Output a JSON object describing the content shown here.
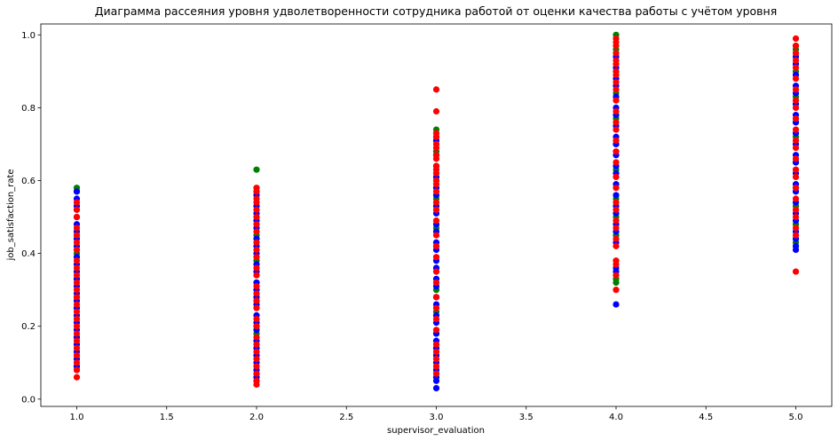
{
  "chart_data": {
    "type": "scatter",
    "title": "Диаграмма рассеяния уровня удволетворенности сотрудника работой от оценки качества работы с учётом уровня",
    "xlabel": "supervisor_evaluation",
    "ylabel": "job_satisfaction_rate",
    "xlim": [
      0.8,
      5.2
    ],
    "ylim": [
      -0.02,
      1.03
    ],
    "xticks": [
      "1.0",
      "1.5",
      "2.0",
      "2.5",
      "3.0",
      "3.5",
      "4.0",
      "4.5",
      "5.0"
    ],
    "yticks": [
      "0.0",
      "0.2",
      "0.4",
      "0.6",
      "0.8",
      "1.0"
    ],
    "grid": false,
    "series": [
      {
        "color": "#008000",
        "points": [
          [
            1,
            0.58
          ],
          [
            1,
            0.57
          ],
          [
            1,
            0.52
          ],
          [
            1,
            0.45
          ],
          [
            1,
            0.4
          ],
          [
            1,
            0.33
          ],
          [
            1,
            0.28
          ],
          [
            1,
            0.22
          ],
          [
            1,
            0.17
          ],
          [
            1,
            0.12
          ],
          [
            1,
            0.09
          ],
          [
            2,
            0.63
          ],
          [
            2,
            0.57
          ],
          [
            2,
            0.5
          ],
          [
            2,
            0.45
          ],
          [
            2,
            0.38
          ],
          [
            2,
            0.32
          ],
          [
            2,
            0.27
          ],
          [
            2,
            0.2
          ],
          [
            2,
            0.18
          ],
          [
            2,
            0.12
          ],
          [
            2,
            0.07
          ],
          [
            3,
            0.74
          ],
          [
            3,
            0.72
          ],
          [
            3,
            0.68
          ],
          [
            3,
            0.6
          ],
          [
            3,
            0.55
          ],
          [
            3,
            0.47
          ],
          [
            3,
            0.42
          ],
          [
            3,
            0.36
          ],
          [
            3,
            0.3
          ],
          [
            3,
            0.24
          ],
          [
            3,
            0.18
          ],
          [
            3,
            0.12
          ],
          [
            3,
            0.07
          ],
          [
            4,
            1.0
          ],
          [
            4,
            0.96
          ],
          [
            4,
            0.9
          ],
          [
            4,
            0.84
          ],
          [
            4,
            0.77
          ],
          [
            4,
            0.7
          ],
          [
            4,
            0.63
          ],
          [
            4,
            0.55
          ],
          [
            4,
            0.5
          ],
          [
            4,
            0.45
          ],
          [
            4,
            0.38
          ],
          [
            4,
            0.33
          ],
          [
            4,
            0.32
          ],
          [
            5,
            0.97
          ],
          [
            5,
            0.96
          ],
          [
            5,
            0.9
          ],
          [
            5,
            0.83
          ],
          [
            5,
            0.76
          ],
          [
            5,
            0.72
          ],
          [
            5,
            0.65
          ],
          [
            5,
            0.58
          ],
          [
            5,
            0.53
          ],
          [
            5,
            0.48
          ],
          [
            5,
            0.43
          ]
        ]
      },
      {
        "color": "#0000ff",
        "points": [
          [
            1,
            0.57
          ],
          [
            1,
            0.55
          ],
          [
            1,
            0.53
          ],
          [
            1,
            0.5
          ],
          [
            1,
            0.48
          ],
          [
            1,
            0.46
          ],
          [
            1,
            0.44
          ],
          [
            1,
            0.42
          ],
          [
            1,
            0.41
          ],
          [
            1,
            0.39
          ],
          [
            1,
            0.37
          ],
          [
            1,
            0.35
          ],
          [
            1,
            0.33
          ],
          [
            1,
            0.31
          ],
          [
            1,
            0.29
          ],
          [
            1,
            0.27
          ],
          [
            1,
            0.25
          ],
          [
            1,
            0.23
          ],
          [
            1,
            0.21
          ],
          [
            1,
            0.19
          ],
          [
            1,
            0.17
          ],
          [
            1,
            0.15
          ],
          [
            1,
            0.13
          ],
          [
            1,
            0.11
          ],
          [
            1,
            0.09
          ],
          [
            1,
            0.08
          ],
          [
            2,
            0.56
          ],
          [
            2,
            0.53
          ],
          [
            2,
            0.51
          ],
          [
            2,
            0.49
          ],
          [
            2,
            0.47
          ],
          [
            2,
            0.44
          ],
          [
            2,
            0.42
          ],
          [
            2,
            0.4
          ],
          [
            2,
            0.37
          ],
          [
            2,
            0.35
          ],
          [
            2,
            0.32
          ],
          [
            2,
            0.3
          ],
          [
            2,
            0.28
          ],
          [
            2,
            0.26
          ],
          [
            2,
            0.23
          ],
          [
            2,
            0.21
          ],
          [
            2,
            0.19
          ],
          [
            2,
            0.16
          ],
          [
            2,
            0.14
          ],
          [
            2,
            0.12
          ],
          [
            2,
            0.1
          ],
          [
            2,
            0.08
          ],
          [
            2,
            0.06
          ],
          [
            2,
            0.05
          ],
          [
            3,
            0.71
          ],
          [
            3,
            0.67
          ],
          [
            3,
            0.64
          ],
          [
            3,
            0.61
          ],
          [
            3,
            0.58
          ],
          [
            3,
            0.56
          ],
          [
            3,
            0.53
          ],
          [
            3,
            0.51
          ],
          [
            3,
            0.48
          ],
          [
            3,
            0.46
          ],
          [
            3,
            0.43
          ],
          [
            3,
            0.41
          ],
          [
            3,
            0.38
          ],
          [
            3,
            0.36
          ],
          [
            3,
            0.33
          ],
          [
            3,
            0.31
          ],
          [
            3,
            0.28
          ],
          [
            3,
            0.26
          ],
          [
            3,
            0.23
          ],
          [
            3,
            0.21
          ],
          [
            3,
            0.18
          ],
          [
            3,
            0.16
          ],
          [
            3,
            0.14
          ],
          [
            3,
            0.12
          ],
          [
            3,
            0.1
          ],
          [
            3,
            0.08
          ],
          [
            3,
            0.06
          ],
          [
            3,
            0.05
          ],
          [
            3,
            0.03
          ],
          [
            4,
            0.94
          ],
          [
            4,
            0.91
          ],
          [
            4,
            0.88
          ],
          [
            4,
            0.86
          ],
          [
            4,
            0.83
          ],
          [
            4,
            0.8
          ],
          [
            4,
            0.78
          ],
          [
            4,
            0.75
          ],
          [
            4,
            0.72
          ],
          [
            4,
            0.7
          ],
          [
            4,
            0.67
          ],
          [
            4,
            0.64
          ],
          [
            4,
            0.62
          ],
          [
            4,
            0.59
          ],
          [
            4,
            0.56
          ],
          [
            4,
            0.53
          ],
          [
            4,
            0.51
          ],
          [
            4,
            0.48
          ],
          [
            4,
            0.46
          ],
          [
            4,
            0.43
          ],
          [
            4,
            0.36
          ],
          [
            4,
            0.35
          ],
          [
            4,
            0.26
          ],
          [
            5,
            0.94
          ],
          [
            5,
            0.92
          ],
          [
            5,
            0.89
          ],
          [
            5,
            0.86
          ],
          [
            5,
            0.84
          ],
          [
            5,
            0.81
          ],
          [
            5,
            0.78
          ],
          [
            5,
            0.76
          ],
          [
            5,
            0.73
          ],
          [
            5,
            0.7
          ],
          [
            5,
            0.67
          ],
          [
            5,
            0.65
          ],
          [
            5,
            0.62
          ],
          [
            5,
            0.59
          ],
          [
            5,
            0.57
          ],
          [
            5,
            0.54
          ],
          [
            5,
            0.51
          ],
          [
            5,
            0.49
          ],
          [
            5,
            0.46
          ],
          [
            5,
            0.44
          ],
          [
            5,
            0.42
          ],
          [
            5,
            0.41
          ]
        ]
      },
      {
        "color": "#ff0000",
        "points": [
          [
            1,
            0.54
          ],
          [
            1,
            0.52
          ],
          [
            1,
            0.5
          ],
          [
            1,
            0.47
          ],
          [
            1,
            0.45
          ],
          [
            1,
            0.43
          ],
          [
            1,
            0.41
          ],
          [
            1,
            0.38
          ],
          [
            1,
            0.36
          ],
          [
            1,
            0.34
          ],
          [
            1,
            0.32
          ],
          [
            1,
            0.3
          ],
          [
            1,
            0.28
          ],
          [
            1,
            0.26
          ],
          [
            1,
            0.24
          ],
          [
            1,
            0.22
          ],
          [
            1,
            0.2
          ],
          [
            1,
            0.18
          ],
          [
            1,
            0.16
          ],
          [
            1,
            0.14
          ],
          [
            1,
            0.12
          ],
          [
            1,
            0.1
          ],
          [
            1,
            0.08
          ],
          [
            1,
            0.06
          ],
          [
            2,
            0.58
          ],
          [
            2,
            0.57
          ],
          [
            2,
            0.55
          ],
          [
            2,
            0.54
          ],
          [
            2,
            0.52
          ],
          [
            2,
            0.5
          ],
          [
            2,
            0.48
          ],
          [
            2,
            0.46
          ],
          [
            2,
            0.43
          ],
          [
            2,
            0.41
          ],
          [
            2,
            0.39
          ],
          [
            2,
            0.36
          ],
          [
            2,
            0.34
          ],
          [
            2,
            0.31
          ],
          [
            2,
            0.29
          ],
          [
            2,
            0.27
          ],
          [
            2,
            0.25
          ],
          [
            2,
            0.22
          ],
          [
            2,
            0.2
          ],
          [
            2,
            0.17
          ],
          [
            2,
            0.15
          ],
          [
            2,
            0.13
          ],
          [
            2,
            0.11
          ],
          [
            2,
            0.09
          ],
          [
            2,
            0.07
          ],
          [
            2,
            0.05
          ],
          [
            2,
            0.04
          ],
          [
            3,
            0.85
          ],
          [
            3,
            0.79
          ],
          [
            3,
            0.73
          ],
          [
            3,
            0.72
          ],
          [
            3,
            0.7
          ],
          [
            3,
            0.69
          ],
          [
            3,
            0.67
          ],
          [
            3,
            0.66
          ],
          [
            3,
            0.64
          ],
          [
            3,
            0.63
          ],
          [
            3,
            0.62
          ],
          [
            3,
            0.6
          ],
          [
            3,
            0.59
          ],
          [
            3,
            0.57
          ],
          [
            3,
            0.54
          ],
          [
            3,
            0.52
          ],
          [
            3,
            0.49
          ],
          [
            3,
            0.45
          ],
          [
            3,
            0.42
          ],
          [
            3,
            0.39
          ],
          [
            3,
            0.35
          ],
          [
            3,
            0.32
          ],
          [
            3,
            0.28
          ],
          [
            3,
            0.25
          ],
          [
            3,
            0.22
          ],
          [
            3,
            0.19
          ],
          [
            3,
            0.15
          ],
          [
            3,
            0.13
          ],
          [
            3,
            0.11
          ],
          [
            3,
            0.09
          ],
          [
            3,
            0.07
          ],
          [
            4,
            0.99
          ],
          [
            4,
            0.98
          ],
          [
            4,
            0.97
          ],
          [
            4,
            0.95
          ],
          [
            4,
            0.93
          ],
          [
            4,
            0.92
          ],
          [
            4,
            0.9
          ],
          [
            4,
            0.89
          ],
          [
            4,
            0.87
          ],
          [
            4,
            0.85
          ],
          [
            4,
            0.82
          ],
          [
            4,
            0.79
          ],
          [
            4,
            0.76
          ],
          [
            4,
            0.74
          ],
          [
            4,
            0.71
          ],
          [
            4,
            0.68
          ],
          [
            4,
            0.65
          ],
          [
            4,
            0.61
          ],
          [
            4,
            0.58
          ],
          [
            4,
            0.54
          ],
          [
            4,
            0.52
          ],
          [
            4,
            0.49
          ],
          [
            4,
            0.47
          ],
          [
            4,
            0.44
          ],
          [
            4,
            0.42
          ],
          [
            4,
            0.38
          ],
          [
            4,
            0.37
          ],
          [
            4,
            0.34
          ],
          [
            4,
            0.3
          ],
          [
            5,
            0.99
          ],
          [
            5,
            0.97
          ],
          [
            5,
            0.95
          ],
          [
            5,
            0.93
          ],
          [
            5,
            0.91
          ],
          [
            5,
            0.88
          ],
          [
            5,
            0.85
          ],
          [
            5,
            0.82
          ],
          [
            5,
            0.8
          ],
          [
            5,
            0.77
          ],
          [
            5,
            0.74
          ],
          [
            5,
            0.71
          ],
          [
            5,
            0.69
          ],
          [
            5,
            0.66
          ],
          [
            5,
            0.63
          ],
          [
            5,
            0.61
          ],
          [
            5,
            0.58
          ],
          [
            5,
            0.55
          ],
          [
            5,
            0.52
          ],
          [
            5,
            0.5
          ],
          [
            5,
            0.47
          ],
          [
            5,
            0.45
          ],
          [
            5,
            0.35
          ]
        ]
      }
    ]
  }
}
